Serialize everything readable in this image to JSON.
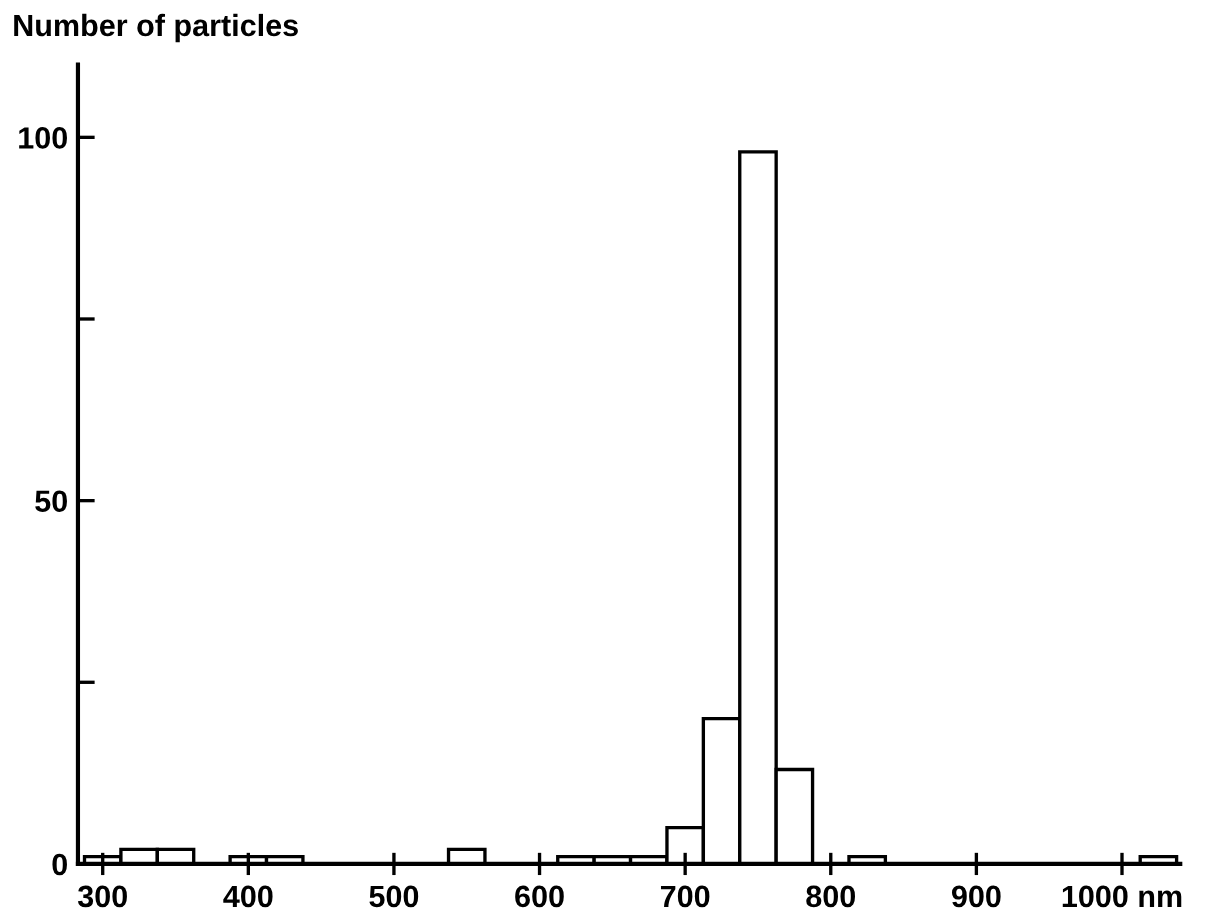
{
  "chart_data": {
    "type": "histogram",
    "ylabel": "Number of particles",
    "bins": [
      287.5,
      312.5,
      337.5,
      362.5,
      387.5,
      412.5,
      437.5,
      462.5,
      487.5,
      512.5,
      537.5,
      562.5,
      587.5,
      612.5,
      637.5,
      662.5,
      687.5,
      712.5,
      737.5,
      762.5,
      787.5,
      812.5,
      837.5,
      862.5,
      887.5,
      912.5,
      937.5,
      962.5,
      987.5,
      1012.5,
      1037.5
    ],
    "values": [
      1,
      2,
      2,
      0,
      1,
      1,
      0,
      0,
      0,
      0,
      2,
      0,
      0,
      1,
      1,
      1,
      5,
      20,
      98,
      13,
      0,
      1,
      0,
      0,
      0,
      0,
      0,
      0,
      0,
      1
    ],
    "color": "#ffffff",
    "xlim": [
      283,
      1040
    ],
    "xticks": [
      300,
      400,
      500,
      600,
      700,
      800,
      900,
      {
        "value": 1000,
        "label": "1000 nm"
      }
    ],
    "ylim": [
      0,
      110
    ],
    "yticks": [
      0,
      {
        "value": 25,
        "label": null
      },
      50,
      {
        "value": 75,
        "label": null
      },
      100
    ],
    "grid": false
  }
}
